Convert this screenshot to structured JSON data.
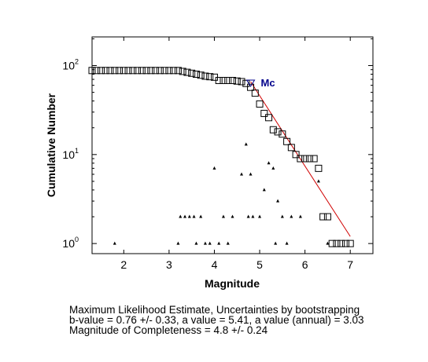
{
  "chart_data": {
    "type": "scatter",
    "xlabel": "Magnitude",
    "ylabel": "Cumulative Number",
    "xlim": [
      1.3,
      7.5
    ],
    "ylim": [
      0.77,
      210
    ],
    "yscale": "log",
    "grid": false,
    "legend": "none",
    "xticks": [
      "2",
      "3",
      "4",
      "5",
      "6",
      "7"
    ],
    "xtick_values": [
      2,
      3,
      4,
      5,
      6,
      7
    ],
    "yticks": [
      {
        "base": "10",
        "exp": "0",
        "value": 1
      },
      {
        "base": "10",
        "exp": "1",
        "value": 10
      },
      {
        "base": "10",
        "exp": "2",
        "value": 100
      }
    ],
    "series": [
      {
        "marker": "square",
        "color": "#000000",
        "points": [
          [
            1.3,
            88
          ],
          [
            1.4,
            88
          ],
          [
            1.5,
            88
          ],
          [
            1.6,
            88
          ],
          [
            1.7,
            88
          ],
          [
            1.8,
            88
          ],
          [
            1.9,
            88
          ],
          [
            2.0,
            88
          ],
          [
            2.1,
            88
          ],
          [
            2.2,
            88
          ],
          [
            2.3,
            88
          ],
          [
            2.4,
            88
          ],
          [
            2.5,
            88
          ],
          [
            2.6,
            88
          ],
          [
            2.7,
            88
          ],
          [
            2.8,
            88
          ],
          [
            2.9,
            88
          ],
          [
            3.0,
            88
          ],
          [
            3.1,
            88
          ],
          [
            3.2,
            88
          ],
          [
            3.3,
            86
          ],
          [
            3.4,
            84
          ],
          [
            3.5,
            82
          ],
          [
            3.6,
            80
          ],
          [
            3.7,
            78
          ],
          [
            3.8,
            76
          ],
          [
            3.9,
            75
          ],
          [
            4.0,
            74
          ],
          [
            4.1,
            68
          ],
          [
            4.2,
            68
          ],
          [
            4.3,
            68
          ],
          [
            4.4,
            68
          ],
          [
            4.5,
            67
          ],
          [
            4.6,
            66
          ],
          [
            4.7,
            63
          ],
          [
            4.8,
            57
          ],
          [
            4.9,
            49
          ],
          [
            5.0,
            37
          ],
          [
            5.1,
            29
          ],
          [
            5.2,
            26
          ],
          [
            5.3,
            19
          ],
          [
            5.4,
            18
          ],
          [
            5.5,
            17
          ],
          [
            5.6,
            14
          ],
          [
            5.7,
            12
          ],
          [
            5.8,
            10
          ],
          [
            5.9,
            9
          ],
          [
            6.0,
            9
          ],
          [
            6.1,
            9
          ],
          [
            6.2,
            9
          ],
          [
            6.3,
            7
          ],
          [
            6.4,
            2
          ],
          [
            6.5,
            2
          ],
          [
            6.6,
            1
          ],
          [
            6.7,
            1
          ],
          [
            6.8,
            1
          ],
          [
            6.9,
            1
          ],
          [
            7.0,
            1
          ]
        ]
      },
      {
        "marker": "triangle",
        "color": "#000000",
        "points": [
          [
            1.8,
            1
          ],
          [
            3.2,
            1
          ],
          [
            3.25,
            2
          ],
          [
            3.35,
            2
          ],
          [
            3.45,
            2
          ],
          [
            3.55,
            2
          ],
          [
            3.6,
            1
          ],
          [
            3.7,
            2
          ],
          [
            3.8,
            1
          ],
          [
            3.9,
            1
          ],
          [
            4.0,
            7
          ],
          [
            4.1,
            1
          ],
          [
            4.2,
            2
          ],
          [
            4.3,
            1
          ],
          [
            4.4,
            2
          ],
          [
            4.6,
            6
          ],
          [
            4.7,
            13
          ],
          [
            4.75,
            2
          ],
          [
            4.8,
            6
          ],
          [
            4.85,
            2
          ],
          [
            5.0,
            2
          ],
          [
            5.1,
            4
          ],
          [
            5.2,
            8
          ],
          [
            5.3,
            7
          ],
          [
            5.35,
            1
          ],
          [
            5.4,
            3
          ],
          [
            5.5,
            2
          ],
          [
            5.6,
            1
          ],
          [
            5.7,
            2
          ],
          [
            5.9,
            2
          ],
          [
            6.3,
            5
          ],
          [
            6.5,
            1
          ]
        ]
      },
      {
        "type": "line",
        "color": "#d00000",
        "points": [
          [
            4.8,
            66
          ],
          [
            7.0,
            1.2
          ]
        ]
      }
    ],
    "annotations": [
      {
        "text": "Mc",
        "marker": "inverted-triangle",
        "x": 4.8,
        "y": 66,
        "color": "#00008b"
      }
    ]
  },
  "caption": {
    "line1": "Maximum Likelihood Estimate, Uncertainties by bootstrapping",
    "line2": "b-value = 0.76 +/- 0.33,  a value = 5.41,  a value (annual) = 3.03",
    "line3": "Magnitude of Completeness = 4.8 +/- 0.24"
  }
}
